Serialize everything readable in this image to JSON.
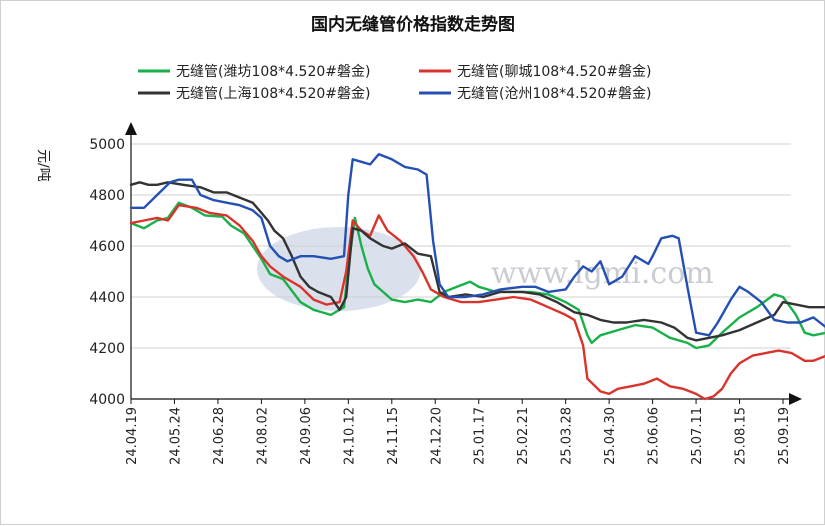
{
  "chart_data": {
    "type": "line",
    "title": "国内无缝管价格指数走势图",
    "ylabel": "元/吨",
    "ylim": [
      4000,
      5000
    ],
    "yticks": [
      4000,
      4200,
      4400,
      4600,
      4800,
      5000
    ],
    "grid": "horizontal",
    "legend_position": "top",
    "watermark": "www.lgmi.com",
    "x_tick_labels": [
      "24.04.19",
      "24.05.24",
      "24.06.28",
      "24.08.02",
      "24.09.06",
      "24.10.12",
      "24.11.15",
      "24.12.20",
      "25.01.17",
      "25.02.21",
      "25.03.28",
      "25.04.30",
      "25.06.06",
      "25.07.11",
      "25.08.15",
      "25.09.19"
    ],
    "series": [
      {
        "name": "无缝管(潍坊108*4.520#磐金)",
        "color": "#19b04a",
        "values": [
          [
            0,
            4690
          ],
          [
            0.3,
            4670
          ],
          [
            0.6,
            4700
          ],
          [
            0.85,
            4710
          ],
          [
            1.1,
            4770
          ],
          [
            1.4,
            4750
          ],
          [
            1.7,
            4720
          ],
          [
            2.1,
            4715
          ],
          [
            2.3,
            4680
          ],
          [
            2.6,
            4650
          ],
          [
            3.0,
            4550
          ],
          [
            3.2,
            4490
          ],
          [
            3.5,
            4470
          ],
          [
            3.9,
            4380
          ],
          [
            4.2,
            4350
          ],
          [
            4.6,
            4330
          ],
          [
            4.9,
            4360
          ],
          [
            5.0,
            4520
          ],
          [
            5.15,
            4710
          ],
          [
            5.3,
            4600
          ],
          [
            5.45,
            4510
          ],
          [
            5.6,
            4450
          ],
          [
            5.8,
            4420
          ],
          [
            6.0,
            4390
          ],
          [
            6.3,
            4380
          ],
          [
            6.6,
            4390
          ],
          [
            6.9,
            4380
          ],
          [
            7.2,
            4420
          ],
          [
            7.5,
            4440
          ],
          [
            7.8,
            4460
          ],
          [
            8.0,
            4440
          ],
          [
            8.4,
            4420
          ],
          [
            8.8,
            4420
          ],
          [
            9.2,
            4420
          ],
          [
            9.6,
            4410
          ],
          [
            10.0,
            4380
          ],
          [
            10.3,
            4350
          ],
          [
            10.5,
            4250
          ],
          [
            10.6,
            4220
          ],
          [
            10.8,
            4250
          ],
          [
            11.2,
            4270
          ],
          [
            11.6,
            4290
          ],
          [
            12.0,
            4280
          ],
          [
            12.4,
            4240
          ],
          [
            12.8,
            4220
          ],
          [
            13.0,
            4200
          ],
          [
            13.3,
            4210
          ],
          [
            13.6,
            4260
          ],
          [
            14.0,
            4320
          ],
          [
            14.4,
            4360
          ],
          [
            14.8,
            4410
          ],
          [
            15.0,
            4400
          ],
          [
            15.3,
            4330
          ],
          [
            15.5,
            4260
          ],
          [
            15.7,
            4250
          ],
          [
            16.0,
            4260
          ]
        ]
      },
      {
        "name": "无缝管(聊城108*4.520#磐金)",
        "color": "#d9342b",
        "values": [
          [
            0,
            4690
          ],
          [
            0.3,
            4700
          ],
          [
            0.6,
            4710
          ],
          [
            0.85,
            4700
          ],
          [
            1.1,
            4760
          ],
          [
            1.5,
            4750
          ],
          [
            1.8,
            4730
          ],
          [
            2.2,
            4720
          ],
          [
            2.5,
            4680
          ],
          [
            2.8,
            4620
          ],
          [
            3.0,
            4560
          ],
          [
            3.2,
            4520
          ],
          [
            3.5,
            4480
          ],
          [
            3.9,
            4440
          ],
          [
            4.2,
            4390
          ],
          [
            4.5,
            4370
          ],
          [
            4.8,
            4380
          ],
          [
            4.95,
            4500
          ],
          [
            5.1,
            4700
          ],
          [
            5.3,
            4660
          ],
          [
            5.5,
            4640
          ],
          [
            5.7,
            4720
          ],
          [
            5.9,
            4660
          ],
          [
            6.2,
            4620
          ],
          [
            6.5,
            4560
          ],
          [
            6.7,
            4500
          ],
          [
            6.9,
            4430
          ],
          [
            7.2,
            4400
          ],
          [
            7.6,
            4380
          ],
          [
            8.0,
            4380
          ],
          [
            8.4,
            4390
          ],
          [
            8.8,
            4400
          ],
          [
            9.2,
            4390
          ],
          [
            9.6,
            4360
          ],
          [
            10.0,
            4330
          ],
          [
            10.2,
            4310
          ],
          [
            10.4,
            4210
          ],
          [
            10.5,
            4080
          ],
          [
            10.8,
            4030
          ],
          [
            11.0,
            4020
          ],
          [
            11.2,
            4040
          ],
          [
            11.5,
            4050
          ],
          [
            11.8,
            4060
          ],
          [
            12.1,
            4080
          ],
          [
            12.4,
            4050
          ],
          [
            12.7,
            4040
          ],
          [
            13.0,
            4020
          ],
          [
            13.2,
            4000
          ],
          [
            13.4,
            4010
          ],
          [
            13.6,
            4040
          ],
          [
            13.8,
            4100
          ],
          [
            14.0,
            4140
          ],
          [
            14.3,
            4170
          ],
          [
            14.6,
            4180
          ],
          [
            14.9,
            4190
          ],
          [
            15.2,
            4180
          ],
          [
            15.5,
            4150
          ],
          [
            15.7,
            4150
          ],
          [
            16.0,
            4170
          ]
        ]
      },
      {
        "name": "无缝管(上海108*4.520#磐金)",
        "color": "#333333",
        "values": [
          [
            0,
            4840
          ],
          [
            0.2,
            4850
          ],
          [
            0.4,
            4840
          ],
          [
            0.6,
            4840
          ],
          [
            0.85,
            4850
          ],
          [
            1.2,
            4840
          ],
          [
            1.6,
            4830
          ],
          [
            1.9,
            4810
          ],
          [
            2.2,
            4810
          ],
          [
            2.5,
            4790
          ],
          [
            2.8,
            4770
          ],
          [
            3.0,
            4730
          ],
          [
            3.15,
            4700
          ],
          [
            3.3,
            4660
          ],
          [
            3.5,
            4630
          ],
          [
            3.7,
            4560
          ],
          [
            3.9,
            4480
          ],
          [
            4.1,
            4440
          ],
          [
            4.3,
            4420
          ],
          [
            4.6,
            4400
          ],
          [
            4.8,
            4350
          ],
          [
            4.95,
            4400
          ],
          [
            5.1,
            4670
          ],
          [
            5.3,
            4660
          ],
          [
            5.5,
            4630
          ],
          [
            5.8,
            4600
          ],
          [
            6.0,
            4590
          ],
          [
            6.3,
            4610
          ],
          [
            6.6,
            4570
          ],
          [
            6.9,
            4560
          ],
          [
            7.1,
            4420
          ],
          [
            7.3,
            4400
          ],
          [
            7.7,
            4410
          ],
          [
            8.1,
            4400
          ],
          [
            8.5,
            4420
          ],
          [
            9.0,
            4420
          ],
          [
            9.4,
            4410
          ],
          [
            9.8,
            4380
          ],
          [
            10.2,
            4340
          ],
          [
            10.5,
            4330
          ],
          [
            10.8,
            4310
          ],
          [
            11.1,
            4300
          ],
          [
            11.4,
            4300
          ],
          [
            11.8,
            4310
          ],
          [
            12.2,
            4300
          ],
          [
            12.5,
            4280
          ],
          [
            12.8,
            4240
          ],
          [
            13.0,
            4230
          ],
          [
            13.3,
            4240
          ],
          [
            13.6,
            4250
          ],
          [
            14.0,
            4270
          ],
          [
            14.4,
            4300
          ],
          [
            14.8,
            4330
          ],
          [
            15.0,
            4380
          ],
          [
            15.3,
            4370
          ],
          [
            15.6,
            4360
          ],
          [
            16.0,
            4360
          ]
        ]
      },
      {
        "name": "无缝管(沧州108*4.520#磐金)",
        "color": "#2550b3",
        "values": [
          [
            0,
            4750
          ],
          [
            0.3,
            4750
          ],
          [
            0.6,
            4800
          ],
          [
            0.9,
            4850
          ],
          [
            1.1,
            4860
          ],
          [
            1.4,
            4860
          ],
          [
            1.6,
            4800
          ],
          [
            1.9,
            4780
          ],
          [
            2.2,
            4770
          ],
          [
            2.5,
            4760
          ],
          [
            2.8,
            4740
          ],
          [
            3.0,
            4710
          ],
          [
            3.2,
            4600
          ],
          [
            3.4,
            4560
          ],
          [
            3.6,
            4540
          ],
          [
            3.9,
            4560
          ],
          [
            4.2,
            4560
          ],
          [
            4.6,
            4550
          ],
          [
            4.9,
            4560
          ],
          [
            5.0,
            4800
          ],
          [
            5.1,
            4940
          ],
          [
            5.3,
            4930
          ],
          [
            5.5,
            4920
          ],
          [
            5.7,
            4960
          ],
          [
            6.0,
            4940
          ],
          [
            6.3,
            4910
          ],
          [
            6.6,
            4900
          ],
          [
            6.8,
            4880
          ],
          [
            6.95,
            4620
          ],
          [
            7.1,
            4450
          ],
          [
            7.3,
            4400
          ],
          [
            7.7,
            4400
          ],
          [
            8.1,
            4410
          ],
          [
            8.5,
            4430
          ],
          [
            9.0,
            4440
          ],
          [
            9.3,
            4440
          ],
          [
            9.6,
            4420
          ],
          [
            10.0,
            4430
          ],
          [
            10.2,
            4480
          ],
          [
            10.4,
            4520
          ],
          [
            10.6,
            4500
          ],
          [
            10.8,
            4540
          ],
          [
            11.0,
            4450
          ],
          [
            11.3,
            4480
          ],
          [
            11.6,
            4560
          ],
          [
            11.9,
            4530
          ],
          [
            12.0,
            4560
          ],
          [
            12.2,
            4630
          ],
          [
            12.45,
            4640
          ],
          [
            12.6,
            4630
          ],
          [
            12.8,
            4440
          ],
          [
            13.0,
            4260
          ],
          [
            13.3,
            4250
          ],
          [
            13.5,
            4300
          ],
          [
            13.8,
            4390
          ],
          [
            14.0,
            4440
          ],
          [
            14.2,
            4420
          ],
          [
            14.5,
            4380
          ],
          [
            14.8,
            4310
          ],
          [
            15.1,
            4300
          ],
          [
            15.4,
            4300
          ],
          [
            15.7,
            4320
          ],
          [
            16.0,
            4280
          ]
        ]
      }
    ]
  }
}
